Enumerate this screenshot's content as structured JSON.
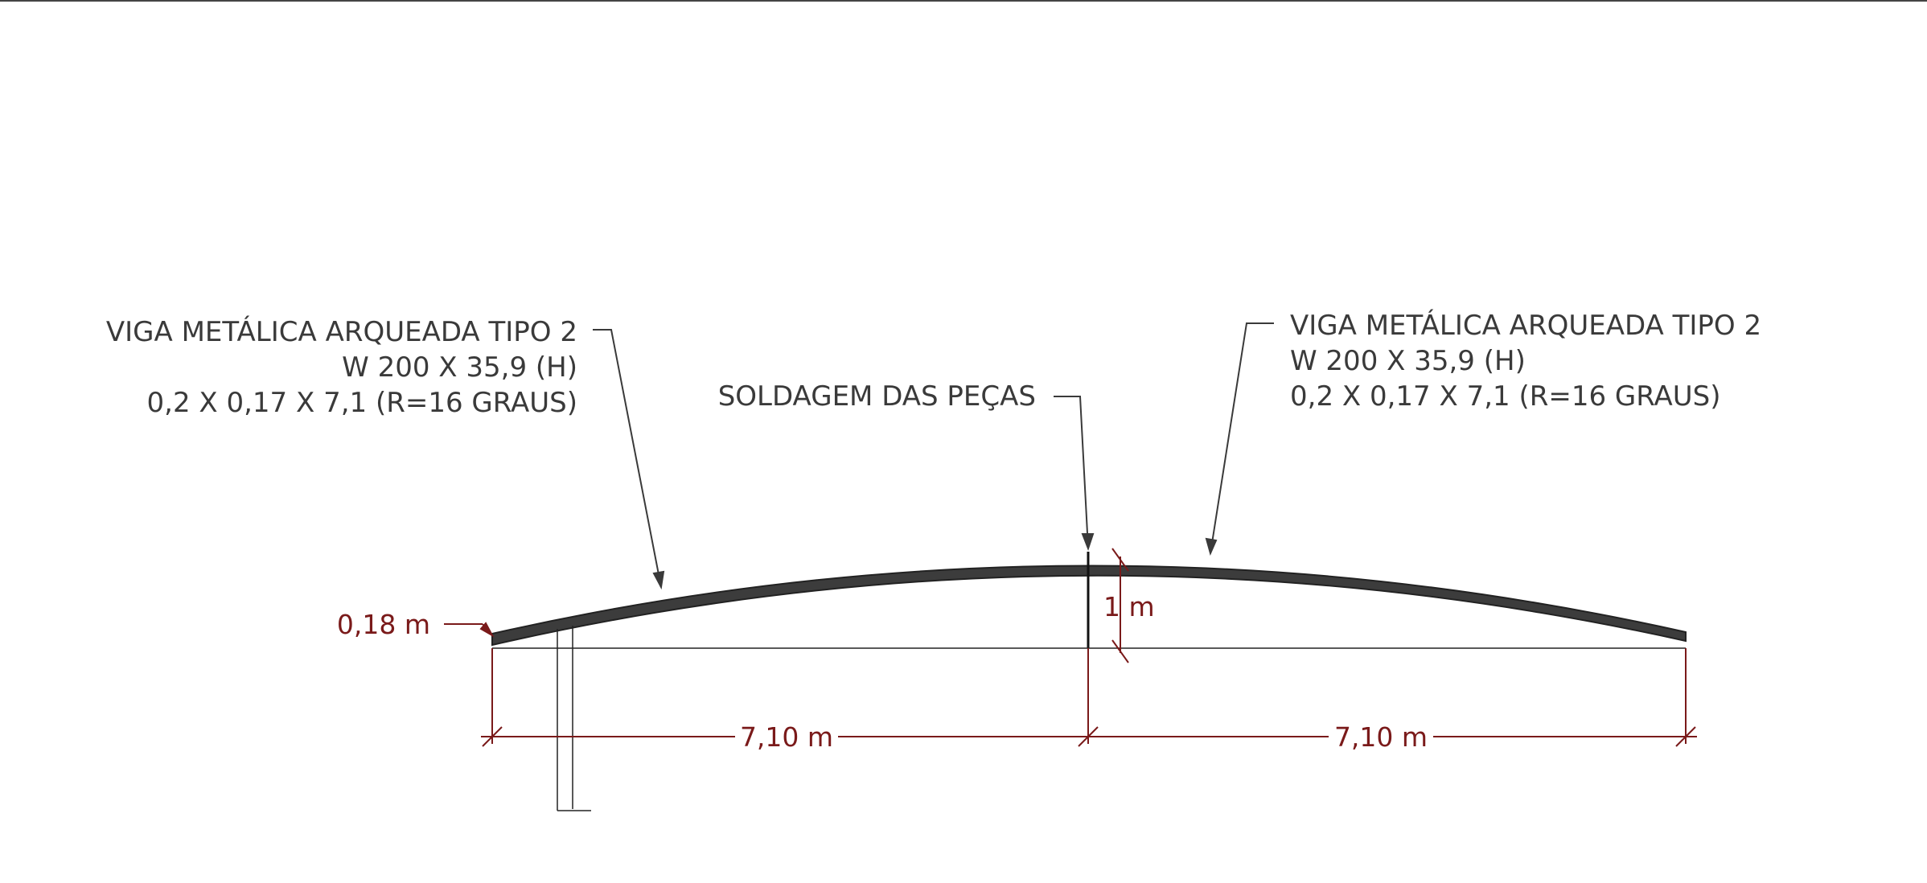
{
  "labels": {
    "left_beam": {
      "line1": "VIGA METÁLICA ARQUEADA TIPO 2",
      "line2": "W 200 X 35,9 (H)",
      "line3": "0,2 X 0,17 X 7,1 (R=16 GRAUS)"
    },
    "right_beam": {
      "line1": "VIGA METÁLICA ARQUEADA TIPO 2",
      "line2": "W 200 X 35,9 (H)",
      "line3": "0,2 X 0,17 X 7,1 (R=16 GRAUS)"
    },
    "weld": "SOLDAGEM DAS PEÇAS"
  },
  "dimensions": {
    "beam_depth": "0,18 m",
    "rise": "1 m",
    "left_span": "7,10 m",
    "right_span": "7,10 m"
  },
  "colors": {
    "beam": "#3c3c3c",
    "leader": "#3a3a3a",
    "dimension": "#7a1a1a",
    "text": "#3a3a3a"
  }
}
